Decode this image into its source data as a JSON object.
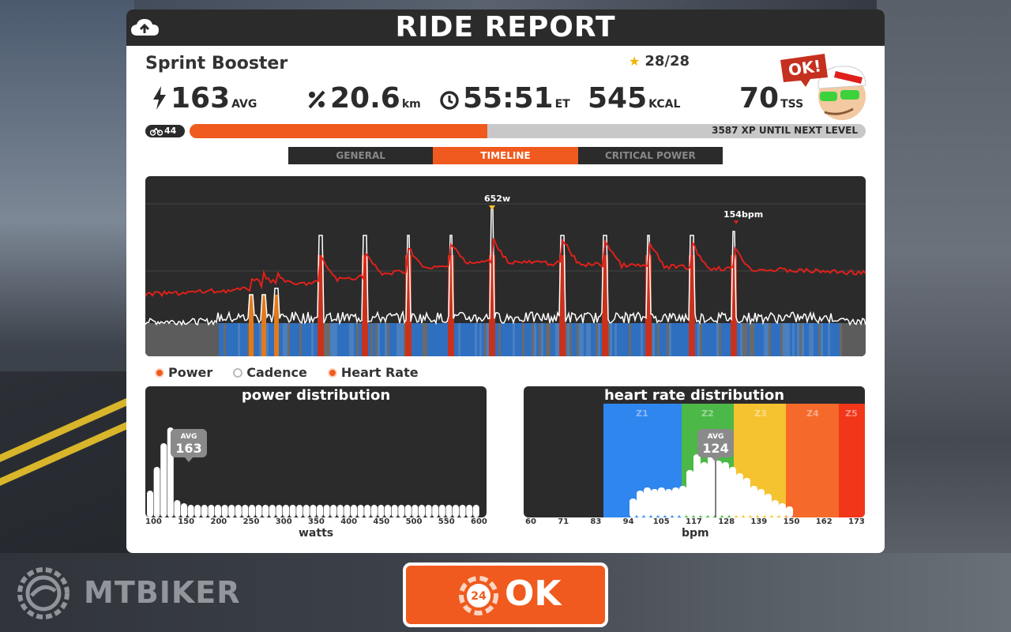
{
  "header": {
    "title": "RIDE REPORT"
  },
  "workout": {
    "name": "Sprint Booster",
    "stars": "28/28"
  },
  "stats": {
    "power_value": "163",
    "power_unit": "AVG",
    "distance_value": "20.6",
    "distance_unit": "km",
    "time_value": "55:51",
    "time_unit": "ET",
    "calories_value": "545",
    "calories_unit": "KCAL",
    "tss_value": "70",
    "tss_unit": "TSS"
  },
  "avatar": {
    "bubble": "OK!"
  },
  "level": {
    "number": "44",
    "xp_text": "3587 XP UNTIL NEXT LEVEL",
    "progress": 0.44
  },
  "tabs": [
    {
      "label": "GENERAL"
    },
    {
      "label": "TIMELINE"
    },
    {
      "label": "CRITICAL POWER"
    }
  ],
  "timeline": {
    "peak_power_label": "652w",
    "peak_hr_label": "154bpm"
  },
  "legend": {
    "power": "Power",
    "cadence": "Cadence",
    "heart_rate": "Heart Rate"
  },
  "power_distribution": {
    "title": "power distribution",
    "avg_label": "AVG",
    "avg_value": "163",
    "ticks": [
      "100",
      "150",
      "200",
      "250",
      "300",
      "350",
      "400",
      "450",
      "500",
      "550",
      "600"
    ],
    "axis_title": "watts"
  },
  "hr_distribution": {
    "title": "heart rate distribution",
    "zones": [
      "Z1",
      "Z2",
      "Z3",
      "Z4",
      "Z5"
    ],
    "avg_label": "AVG",
    "avg_value": "124",
    "ticks": [
      "60",
      "71",
      "83",
      "94",
      "105",
      "117",
      "128",
      "139",
      "150",
      "162",
      "173"
    ],
    "axis_title": "bpm"
  },
  "ok_button": {
    "label": "OK",
    "timer": "24"
  },
  "watermark": {
    "text": "MTBIKER"
  },
  "colors": {
    "accent": "#f05a1e",
    "panel_dark": "#2b2b2b",
    "hr_line": "#e0201a",
    "zone1": "#2f86ee",
    "zone2": "#4cb848",
    "zone3": "#f5c230",
    "zone4": "#f56a2a",
    "zone5": "#f2361a"
  }
}
